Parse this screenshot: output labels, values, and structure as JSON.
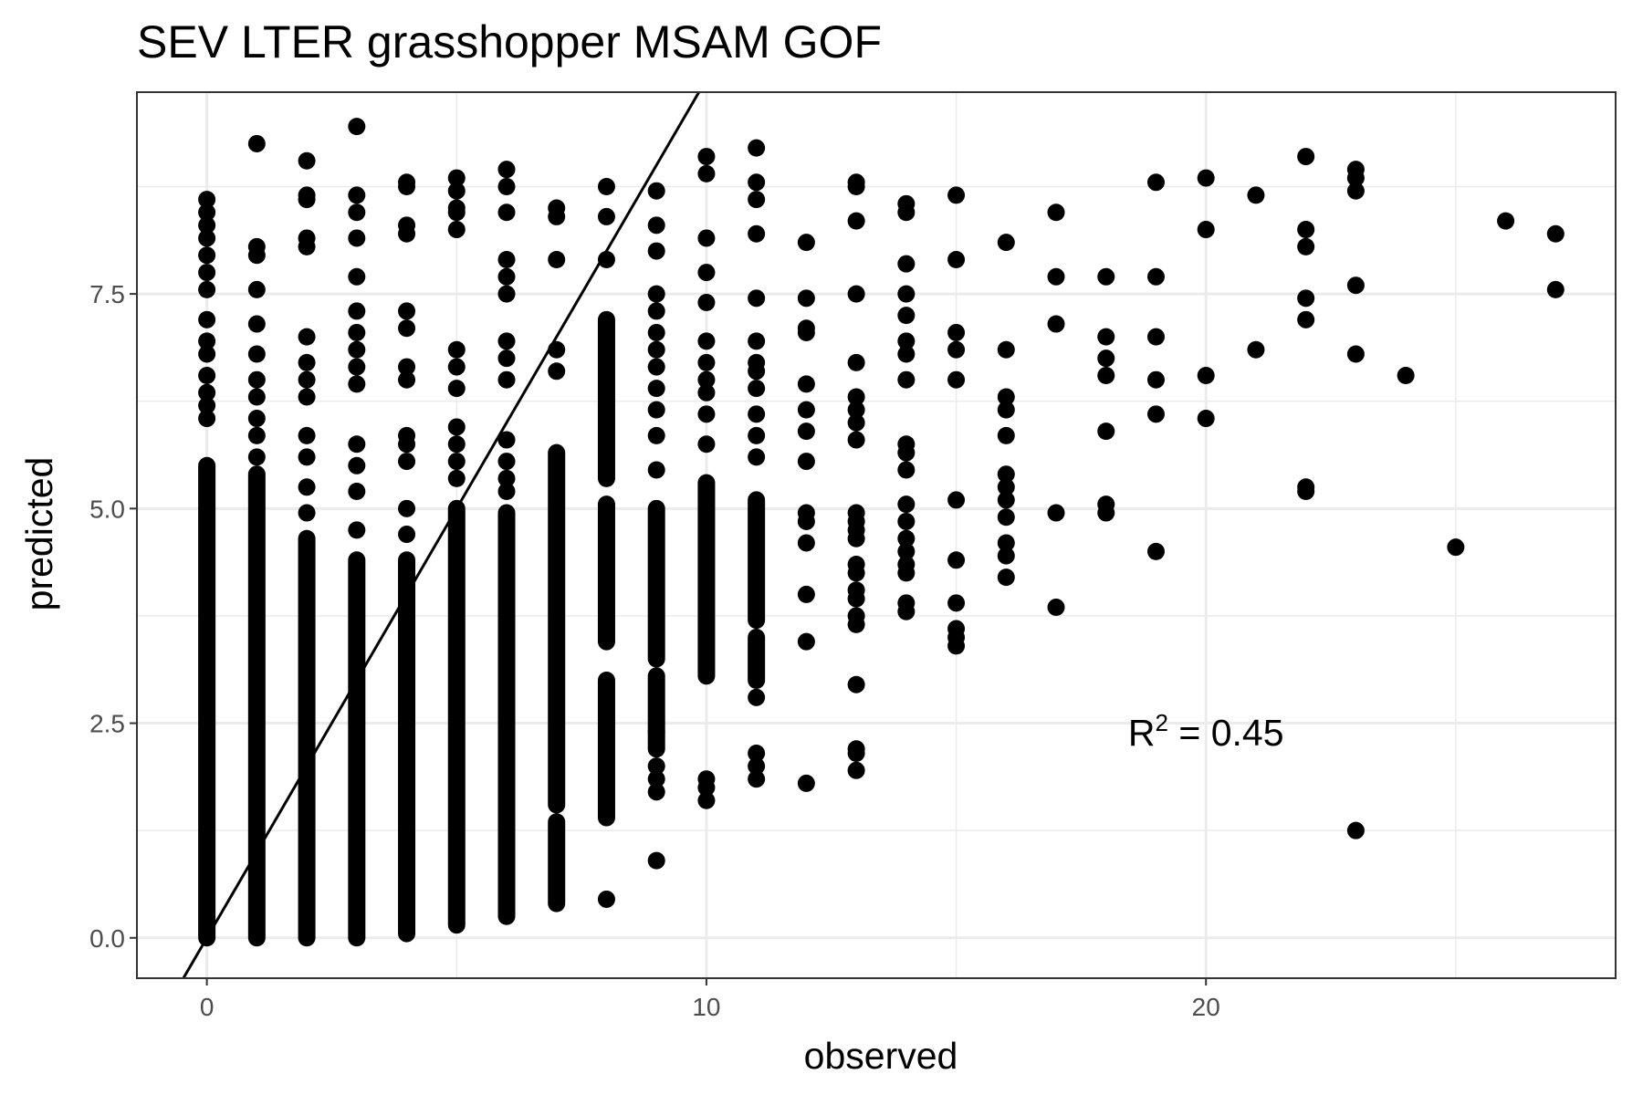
{
  "chart_data": {
    "type": "scatter",
    "title": "SEV LTER grasshopper MSAM GOF",
    "xlabel": "observed",
    "ylabel": "predicted",
    "xlim": [
      -1.4,
      28.2
    ],
    "ylim": [
      -0.47,
      9.85
    ],
    "x_ticks": [
      0,
      10,
      20
    ],
    "x_tick_labels": [
      "0",
      "10",
      "20"
    ],
    "y_ticks": [
      0.0,
      2.5,
      5.0,
      7.5
    ],
    "y_tick_labels": [
      "0.0",
      "2.5",
      "5.0",
      "7.5"
    ],
    "x_minor_gridlines": [
      5,
      15,
      25
    ],
    "y_minor_gridlines": [
      1.25,
      3.75,
      6.25,
      8.75
    ],
    "grid": true,
    "legend": "none",
    "reference_line": {
      "kind": "one-to-one",
      "slope": 1,
      "intercept": 0
    },
    "annotation": {
      "base": "R",
      "superscript": "2",
      "text": " = 0.45",
      "x": 20,
      "y": 2.4
    },
    "colors": {
      "points": "#000000",
      "line": "#000000",
      "grid": "#ebebeb",
      "panel_border": "#333333",
      "tick_label": "#4d4d4d"
    },
    "columns": [
      {
        "x": 0,
        "ranges": [
          [
            0.0,
            5.5
          ]
        ],
        "values": [
          6.05,
          6.2,
          6.35,
          6.55,
          6.8,
          6.95,
          7.2,
          7.55,
          7.75,
          7.95,
          8.15,
          8.3,
          8.45,
          8.6
        ]
      },
      {
        "x": 1,
        "ranges": [
          [
            0.0,
            5.4
          ]
        ],
        "values": [
          5.6,
          5.85,
          6.05,
          6.3,
          6.5,
          6.8,
          7.15,
          7.55,
          7.95,
          8.05,
          9.25
        ]
      },
      {
        "x": 2,
        "ranges": [
          [
            0.0,
            4.65
          ]
        ],
        "values": [
          4.95,
          5.25,
          5.6,
          5.85,
          6.3,
          6.5,
          6.7,
          7.0,
          8.05,
          8.15,
          8.6,
          8.65,
          9.05
        ]
      },
      {
        "x": 3,
        "ranges": [
          [
            0.0,
            4.4
          ]
        ],
        "values": [
          4.75,
          5.2,
          5.5,
          5.75,
          6.45,
          6.65,
          6.85,
          7.05,
          7.3,
          7.7,
          8.15,
          8.45,
          8.65,
          9.45
        ]
      },
      {
        "x": 4,
        "ranges": [
          [
            0.05,
            4.4
          ]
        ],
        "values": [
          4.7,
          5.0,
          5.55,
          5.75,
          5.85,
          6.5,
          6.65,
          7.1,
          7.3,
          8.2,
          8.3,
          8.75,
          8.8
        ]
      },
      {
        "x": 5,
        "ranges": [
          [
            0.15,
            5.0
          ]
        ],
        "values": [
          5.35,
          5.55,
          5.75,
          5.95,
          6.4,
          6.65,
          6.85,
          8.25,
          8.45,
          8.5,
          8.7,
          8.85
        ]
      },
      {
        "x": 6,
        "ranges": [
          [
            0.25,
            4.95
          ]
        ],
        "values": [
          5.2,
          5.35,
          5.55,
          5.8,
          6.5,
          6.75,
          6.95,
          7.5,
          7.7,
          7.9,
          8.45,
          8.75,
          8.95
        ]
      },
      {
        "x": 7,
        "ranges": [
          [
            0.4,
            1.35
          ],
          [
            1.55,
            5.65
          ]
        ],
        "values": [
          6.6,
          6.85,
          7.9,
          8.4,
          8.5
        ]
      },
      {
        "x": 8,
        "ranges": [
          [
            1.4,
            3.0
          ],
          [
            3.45,
            5.05
          ],
          [
            5.35,
            7.2
          ]
        ],
        "values": [
          0.45,
          7.9,
          8.4,
          8.75
        ]
      },
      {
        "x": 9,
        "ranges": [
          [
            2.2,
            3.05
          ],
          [
            3.25,
            5.0
          ]
        ],
        "values": [
          0.9,
          1.7,
          1.85,
          2.0,
          2.4,
          5.45,
          5.85,
          6.15,
          6.4,
          6.65,
          6.85,
          7.05,
          7.3,
          7.5,
          8.0,
          8.3,
          8.7
        ]
      },
      {
        "x": 10,
        "ranges": [
          [
            3.05,
            5.3
          ]
        ],
        "values": [
          1.6,
          1.75,
          1.85,
          5.75,
          6.1,
          6.35,
          6.5,
          6.7,
          6.95,
          7.4,
          7.75,
          8.15,
          8.9,
          9.1
        ]
      },
      {
        "x": 11,
        "ranges": [
          [
            3.0,
            3.5
          ],
          [
            3.7,
            5.1
          ]
        ],
        "values": [
          1.85,
          2.0,
          2.15,
          2.8,
          5.6,
          5.85,
          6.1,
          6.4,
          6.6,
          6.7,
          6.95,
          7.45,
          8.2,
          8.6,
          8.8,
          9.2
        ]
      },
      {
        "x": 12,
        "values": [
          1.8,
          3.45,
          4.0,
          4.6,
          4.85,
          4.95,
          5.55,
          5.9,
          6.15,
          6.45,
          7.05,
          7.1,
          7.45,
          8.1
        ]
      },
      {
        "x": 13,
        "values": [
          1.95,
          2.15,
          2.2,
          2.95,
          3.65,
          3.75,
          3.95,
          4.05,
          4.25,
          4.35,
          4.65,
          4.75,
          4.85,
          4.95,
          5.8,
          6.0,
          6.15,
          6.3,
          6.7,
          7.5,
          8.35,
          8.75,
          8.8
        ]
      },
      {
        "x": 14,
        "values": [
          3.8,
          3.9,
          4.25,
          4.35,
          4.5,
          4.65,
          4.85,
          5.05,
          5.45,
          5.65,
          5.75,
          6.5,
          6.8,
          6.95,
          7.25,
          7.5,
          7.85,
          8.45,
          8.55
        ]
      },
      {
        "x": 15,
        "values": [
          3.4,
          3.5,
          3.6,
          3.9,
          4.4,
          5.1,
          6.5,
          6.85,
          7.05,
          7.9,
          8.65
        ]
      },
      {
        "x": 16,
        "values": [
          4.2,
          4.45,
          4.6,
          4.9,
          5.1,
          5.25,
          5.4,
          5.85,
          6.15,
          6.3,
          6.85,
          8.1
        ]
      },
      {
        "x": 17,
        "values": [
          3.85,
          4.95,
          7.15,
          7.7,
          8.45
        ]
      },
      {
        "x": 18,
        "values": [
          4.95,
          5.05,
          5.9,
          6.55,
          6.75,
          7.0,
          7.7
        ]
      },
      {
        "x": 19,
        "values": [
          4.5,
          6.1,
          6.5,
          7.0,
          7.7,
          8.8
        ]
      },
      {
        "x": 20,
        "values": [
          6.05,
          6.55,
          8.25,
          8.85
        ]
      },
      {
        "x": 21,
        "values": [
          6.85,
          8.65
        ]
      },
      {
        "x": 22,
        "values": [
          5.2,
          5.25,
          7.2,
          7.45,
          8.05,
          8.25,
          9.1
        ]
      },
      {
        "x": 23,
        "values": [
          1.25,
          6.8,
          7.6,
          8.7,
          8.85,
          8.95
        ]
      },
      {
        "x": 24,
        "values": [
          6.55
        ]
      },
      {
        "x": 25,
        "values": [
          4.55
        ]
      },
      {
        "x": 26,
        "values": [
          8.35
        ]
      },
      {
        "x": 27,
        "values": [
          7.55,
          8.2
        ]
      }
    ]
  }
}
